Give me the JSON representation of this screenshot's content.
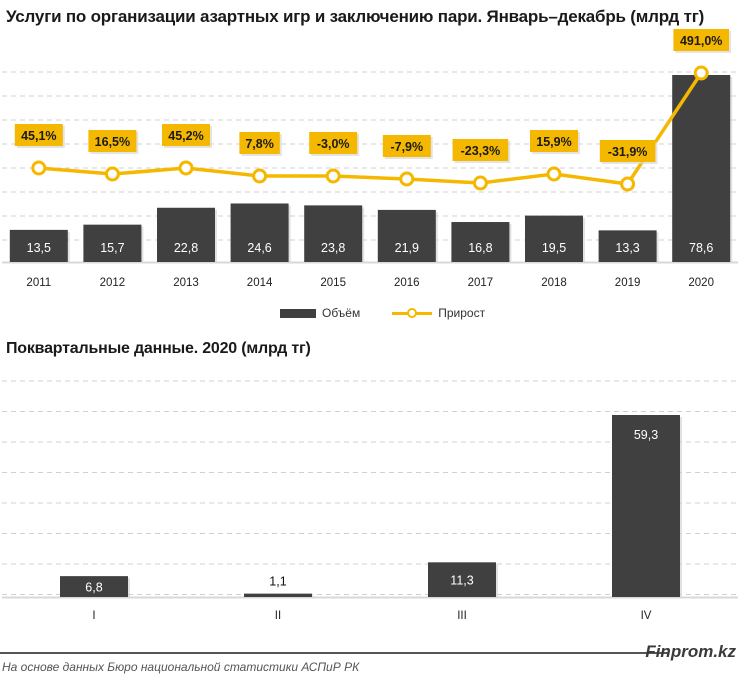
{
  "chart_data": [
    {
      "type": "bar+line",
      "title": "Услуги по организации азартных игр и заключению пари. Январь–декабрь (млрд тг)",
      "categories": [
        "2011",
        "2012",
        "2013",
        "2014",
        "2015",
        "2016",
        "2017",
        "2018",
        "2019",
        "2020"
      ],
      "series": [
        {
          "name": "Объём",
          "type": "bar",
          "color": "#404040",
          "values": [
            13.5,
            15.7,
            22.8,
            24.6,
            23.8,
            21.9,
            16.8,
            19.5,
            13.3,
            78.6
          ],
          "labels": [
            "13,5",
            "15,7",
            "22,8",
            "24,6",
            "23,8",
            "21,9",
            "16,8",
            "19,5",
            "13,3",
            "78,6"
          ]
        },
        {
          "name": "Прирост",
          "type": "line",
          "color": "#f5b800",
          "values": [
            45.1,
            16.5,
            45.2,
            7.8,
            -3.0,
            -7.9,
            -23.3,
            15.9,
            -31.9,
            491.0
          ],
          "labels": [
            "45,1%",
            "16,5%",
            "45,2%",
            "7,8%",
            "-3,0%",
            "-7,9%",
            "-23,3%",
            "15,9%",
            "-31,9%",
            "491,0%"
          ]
        }
      ],
      "legend": [
        "Объём",
        "Прирост"
      ],
      "legend_position": "bottom",
      "grid": true
    },
    {
      "type": "bar",
      "title": "Поквартальные данные. 2020 (млрд тг)",
      "categories": [
        "I",
        "II",
        "III",
        "IV"
      ],
      "values": [
        6.8,
        1.1,
        11.3,
        59.3
      ],
      "labels": [
        "6,8",
        "1,1",
        "11,3",
        "59,3"
      ],
      "color": "#404040",
      "grid": true
    }
  ],
  "footer": {
    "brand": "Finprom.kz",
    "source": "На основе данных Бюро национальной статистики АСПиР РК"
  }
}
